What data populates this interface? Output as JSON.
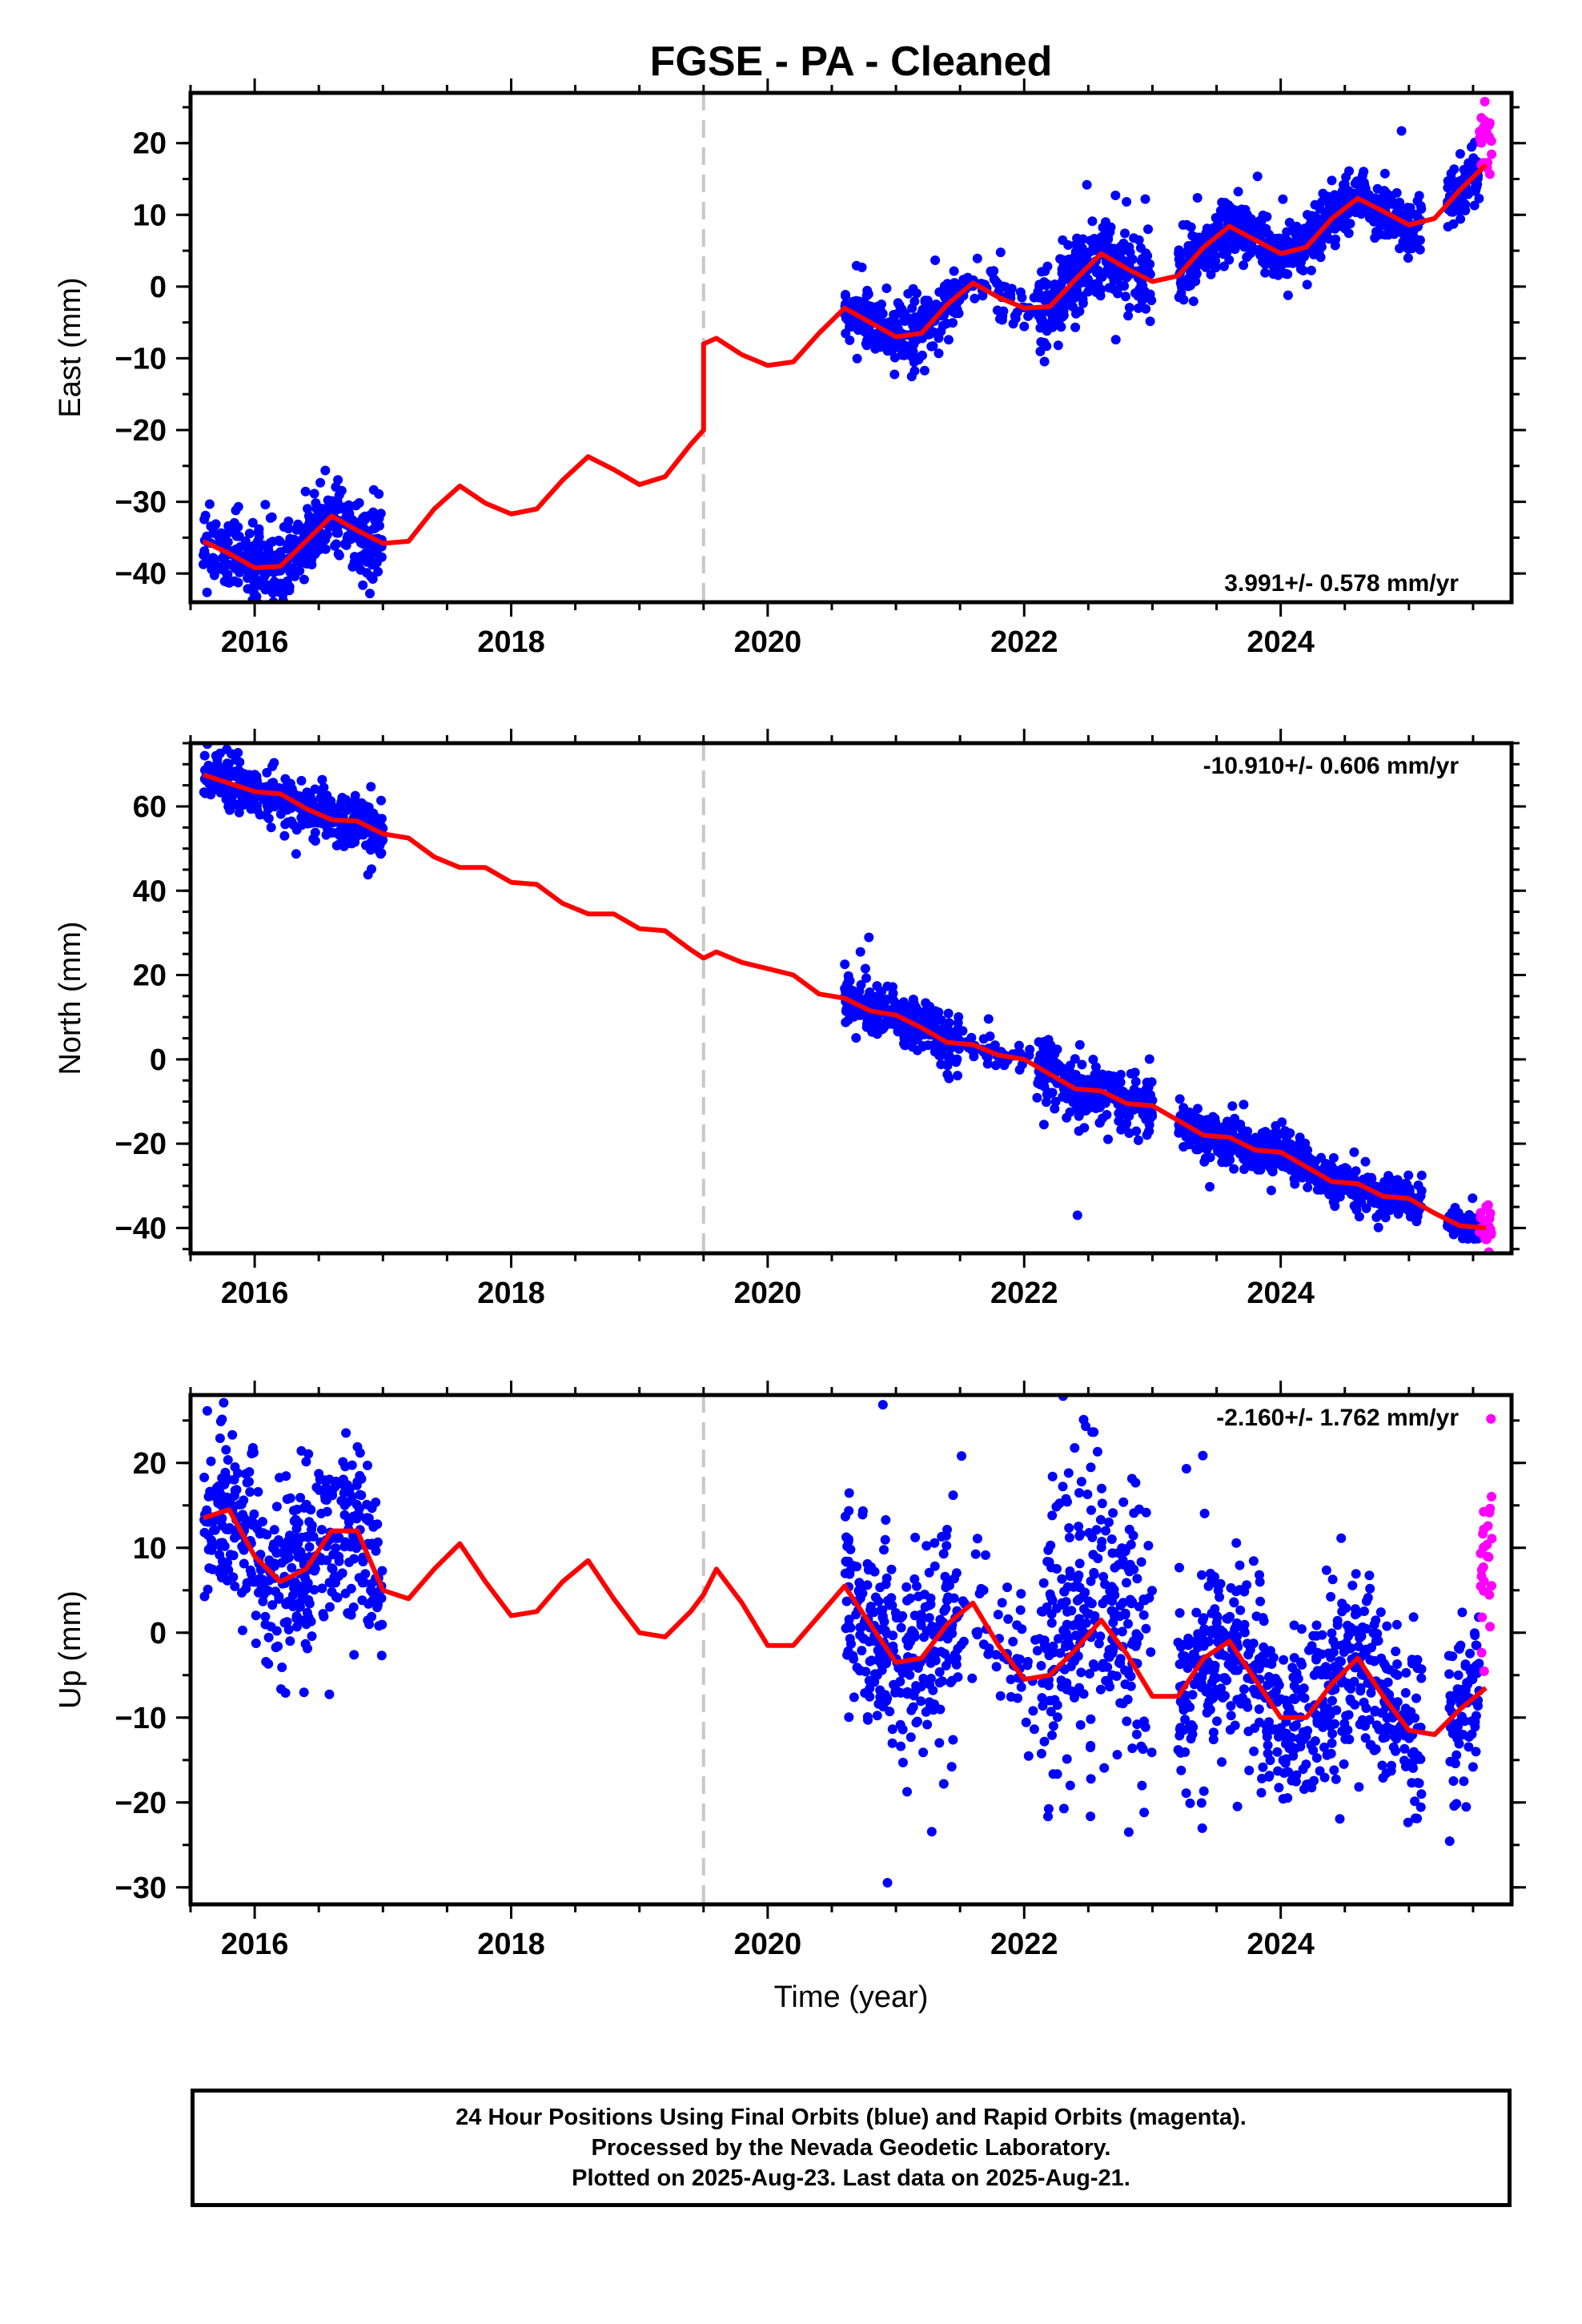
{
  "chart_data": [
    {
      "type": "scatter",
      "title": "FGSE  - PA - Cleaned",
      "ylabel": "East (mm)",
      "xlabel": "",
      "xlim": [
        2015.5,
        2025.8
      ],
      "ylim": [
        -44,
        27
      ],
      "x_ticks": [
        "2016",
        "2018",
        "2020",
        "2022",
        "2024"
      ],
      "y_ticks": [
        "20",
        "10",
        "0",
        "−10",
        "−20",
        "−30",
        "−40"
      ],
      "rate_label": "3.991+/- 0.578 mm/yr",
      "rate_label_position": "bottom-right",
      "break_year": 2019.5,
      "grid": false,
      "model": {
        "name": "",
        "color": "#ff0000",
        "x": [
          2015.6,
          2015.8,
          2016.0,
          2016.2,
          2016.4,
          2016.6,
          2016.8,
          2017.0,
          2017.2,
          2017.4,
          2017.6,
          2017.8,
          2018.0,
          2018.2,
          2018.4,
          2018.6,
          2018.8,
          2019.0,
          2019.2,
          2019.4,
          2019.5,
          2019.5,
          2019.6,
          2019.8,
          2020.0,
          2020.2,
          2020.4,
          2020.6,
          2020.8,
          2021.0,
          2021.2,
          2021.4,
          2021.6,
          2021.8,
          2022.0,
          2022.2,
          2022.4,
          2022.6,
          2022.8,
          2023.0,
          2023.2,
          2023.4,
          2023.6,
          2023.8,
          2024.0,
          2024.2,
          2024.4,
          2024.6,
          2024.8,
          2025.0,
          2025.2,
          2025.4,
          2025.6
        ],
        "y": [
          -35.5,
          -37.2,
          -39.2,
          -39.0,
          -35.5,
          -32.0,
          -34.0,
          -35.8,
          -35.5,
          -31.0,
          -27.8,
          -30.2,
          -31.7,
          -31.0,
          -27.0,
          -23.7,
          -25.5,
          -27.6,
          -26.5,
          -22.0,
          -20.0,
          -8.0,
          -7.2,
          -9.5,
          -11.0,
          -10.5,
          -6.5,
          -3.0,
          -5.0,
          -7.0,
          -6.5,
          -2.5,
          0.5,
          -1.5,
          -3.0,
          -2.8,
          1.0,
          4.6,
          2.5,
          0.7,
          1.5,
          5.5,
          8.4,
          6.5,
          4.6,
          5.5,
          9.5,
          12.3,
          10.5,
          8.6,
          9.5,
          13.5,
          17.0
        ]
      },
      "series": [
        {
          "name": "",
          "color": "#0000ff",
          "segments": [
            {
              "x0": 2015.6,
              "x1": 2017.0,
              "model": "follow",
              "spread": 2.5
            },
            {
              "x0": 2020.6,
              "x1": 2021.5,
              "model": "follow",
              "spread": 2.0
            },
            {
              "x0": 2021.5,
              "x1": 2022.1,
              "model": "follow",
              "spread": 1.8,
              "sparse": true
            },
            {
              "x0": 2022.1,
              "x1": 2023.0,
              "model": "follow",
              "spread": 3.0
            },
            {
              "x0": 2023.2,
              "x1": 2025.1,
              "model": "follow",
              "spread": 2.0
            },
            {
              "x0": 2025.3,
              "x1": 2025.55,
              "model": "follow",
              "spread": 2.0
            }
          ]
        },
        {
          "name": "",
          "color": "#ff00ff",
          "segments": [
            {
              "x0": 2025.55,
              "x1": 2025.65,
              "model": "follow",
              "spread": 3.0,
              "offset": 3.0
            }
          ]
        }
      ]
    },
    {
      "type": "scatter",
      "title": "",
      "ylabel": "North (mm)",
      "xlabel": "",
      "xlim": [
        2015.5,
        2025.8
      ],
      "ylim": [
        -46,
        75
      ],
      "x_ticks": [
        "2016",
        "2018",
        "2020",
        "2022",
        "2024"
      ],
      "y_ticks": [
        "60",
        "40",
        "20",
        "0",
        "−20",
        "−40"
      ],
      "rate_label": "-10.910+/- 0.606 mm/yr",
      "rate_label_position": "top-right",
      "break_year": 2019.5,
      "grid": false,
      "model": {
        "name": "",
        "color": "#ff0000",
        "x": [
          2015.6,
          2015.8,
          2016.0,
          2016.2,
          2016.4,
          2016.6,
          2016.8,
          2017.0,
          2017.2,
          2017.4,
          2017.6,
          2017.8,
          2018.0,
          2018.2,
          2018.4,
          2018.6,
          2018.8,
          2019.0,
          2019.2,
          2019.4,
          2019.5,
          2019.6,
          2019.8,
          2020.0,
          2020.2,
          2020.4,
          2020.6,
          2020.8,
          2021.0,
          2021.2,
          2021.4,
          2021.6,
          2021.8,
          2022.0,
          2022.2,
          2022.4,
          2022.6,
          2022.8,
          2023.0,
          2023.2,
          2023.4,
          2023.6,
          2023.8,
          2024.0,
          2024.2,
          2024.4,
          2024.6,
          2024.8,
          2025.0,
          2025.2,
          2025.4,
          2025.6
        ],
        "y": [
          67.5,
          65.5,
          63.5,
          63.0,
          59.5,
          56.8,
          56.5,
          53.5,
          52.5,
          48.0,
          45.5,
          45.5,
          42.0,
          41.5,
          37.0,
          34.5,
          34.5,
          31.0,
          30.5,
          26.0,
          24.0,
          25.5,
          23.0,
          21.5,
          20.0,
          15.5,
          14.5,
          11.5,
          10.5,
          7.5,
          4.0,
          3.5,
          1.0,
          0.0,
          -3.5,
          -7.0,
          -7.5,
          -10.5,
          -11.0,
          -14.5,
          -18.0,
          -18.5,
          -21.5,
          -22.0,
          -25.5,
          -29.0,
          -29.5,
          -32.5,
          -33.0,
          -36.5,
          -39.5,
          -40.0
        ]
      },
      "series": [
        {
          "name": "",
          "color": "#0000ff",
          "segments": [
            {
              "x0": 2015.6,
              "x1": 2017.0,
              "model": "follow",
              "spread": 3.0
            },
            {
              "x0": 2020.6,
              "x1": 2021.5,
              "model": "follow",
              "spread": 3.0
            },
            {
              "x0": 2021.5,
              "x1": 2022.1,
              "model": "follow",
              "spread": 1.5,
              "sparse": true
            },
            {
              "x0": 2022.1,
              "x1": 2023.0,
              "model": "follow",
              "spread": 3.5
            },
            {
              "x0": 2023.2,
              "x1": 2025.1,
              "model": "follow",
              "spread": 2.5
            },
            {
              "x0": 2025.3,
              "x1": 2025.55,
              "model": "follow",
              "spread": 1.5
            }
          ]
        },
        {
          "name": "",
          "color": "#ff00ff",
          "segments": [
            {
              "x0": 2025.55,
              "x1": 2025.65,
              "model": "follow",
              "spread": 2.5
            }
          ]
        }
      ]
    },
    {
      "type": "scatter",
      "title": "",
      "ylabel": "Up (mm)",
      "xlabel": "Time (year)",
      "xlim": [
        2015.5,
        2025.8
      ],
      "ylim": [
        -32,
        28
      ],
      "x_ticks": [
        "2016",
        "2018",
        "2020",
        "2022",
        "2024"
      ],
      "y_ticks": [
        "20",
        "10",
        "0",
        "−10",
        "−20",
        "−30"
      ],
      "rate_label": "-2.160+/- 1.762 mm/yr",
      "rate_label_position": "top-right",
      "break_year": 2019.5,
      "grid": false,
      "model": {
        "name": "",
        "color": "#ff0000",
        "x": [
          2015.6,
          2015.8,
          2016.0,
          2016.2,
          2016.4,
          2016.6,
          2016.8,
          2017.0,
          2017.2,
          2017.4,
          2017.6,
          2017.8,
          2018.0,
          2018.2,
          2018.4,
          2018.6,
          2018.8,
          2019.0,
          2019.2,
          2019.4,
          2019.5,
          2019.6,
          2019.8,
          2020.0,
          2020.2,
          2020.4,
          2020.6,
          2020.8,
          2021.0,
          2021.2,
          2021.4,
          2021.6,
          2021.8,
          2022.0,
          2022.2,
          2022.4,
          2022.6,
          2022.8,
          2023.0,
          2023.2,
          2023.4,
          2023.6,
          2023.8,
          2024.0,
          2024.2,
          2024.4,
          2024.6,
          2024.8,
          2025.0,
          2025.2,
          2025.4,
          2025.6
        ],
        "y": [
          13.5,
          14.5,
          9.0,
          6.0,
          7.5,
          12.0,
          12.0,
          5.0,
          4.0,
          7.5,
          10.5,
          6.0,
          2.0,
          2.5,
          6.0,
          8.5,
          4.0,
          0.0,
          -0.5,
          2.5,
          4.5,
          7.5,
          3.5,
          -1.5,
          -1.5,
          2.0,
          5.5,
          1.0,
          -3.5,
          -3.0,
          1.0,
          3.5,
          -1.5,
          -5.5,
          -5.0,
          -2.0,
          1.5,
          -2.5,
          -7.5,
          -7.5,
          -3.0,
          -1.0,
          -5.5,
          -10.0,
          -10.0,
          -6.0,
          -3.0,
          -7.5,
          -11.5,
          -12.0,
          -9.0,
          -6.5
        ]
      },
      "series": [
        {
          "name": "",
          "color": "#0000ff",
          "segments": [
            {
              "x0": 2015.6,
              "x1": 2017.0,
              "model": "follow",
              "spread": 5.0
            },
            {
              "x0": 2020.6,
              "x1": 2021.5,
              "model": "follow",
              "spread": 6.0
            },
            {
              "x0": 2021.5,
              "x1": 2022.1,
              "model": "follow",
              "spread": 4.0,
              "sparse": true
            },
            {
              "x0": 2022.1,
              "x1": 2023.0,
              "model": "follow",
              "spread": 8.0,
              "offset": 4.0
            },
            {
              "x0": 2023.2,
              "x1": 2025.1,
              "model": "follow",
              "spread": 5.5
            },
            {
              "x0": 2025.3,
              "x1": 2025.55,
              "model": "follow",
              "spread": 5.0
            }
          ]
        },
        {
          "name": "",
          "color": "#ff00ff",
          "segments": [
            {
              "x0": 2025.55,
              "x1": 2025.65,
              "model": "follow",
              "spread": 6.0,
              "offset": 12.0
            }
          ]
        }
      ]
    }
  ],
  "footer": {
    "line1": "24 Hour Positions Using Final Orbits (blue) and Rapid Orbits (magenta).",
    "line2": "Processed by the Nevada Geodetic Laboratory.",
    "line3": "Plotted on 2025-Aug-23. Last data on 2025-Aug-21."
  }
}
